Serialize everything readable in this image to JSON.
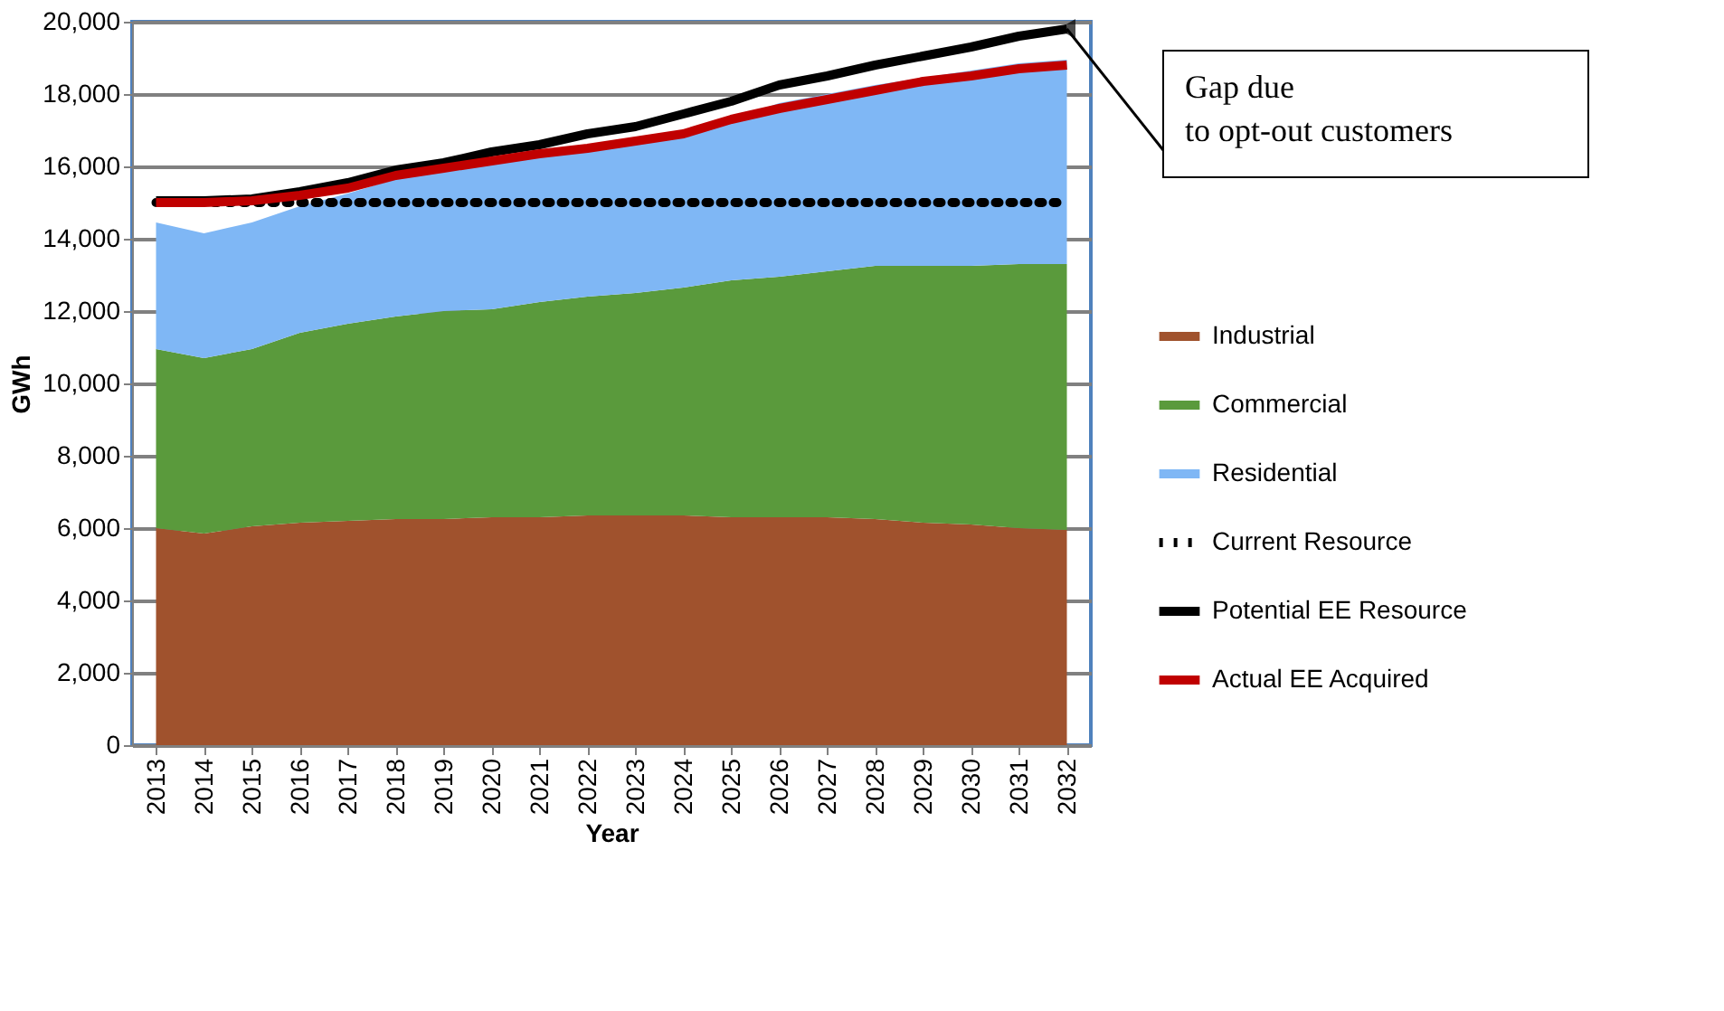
{
  "chart_data": {
    "type": "area",
    "stacked": true,
    "xlabel": "Year",
    "ylabel": "GWh",
    "categories": [
      "2013",
      "2014",
      "2015",
      "2016",
      "2017",
      "2018",
      "2019",
      "2020",
      "2021",
      "2022",
      "2023",
      "2024",
      "2025",
      "2026",
      "2027",
      "2028",
      "2029",
      "2030",
      "2031",
      "2032"
    ],
    "series": [
      {
        "name": "Industrial",
        "color": "#a0522d",
        "values": [
          6000,
          5850,
          6050,
          6150,
          6200,
          6250,
          6250,
          6300,
          6300,
          6350,
          6350,
          6350,
          6300,
          6300,
          6300,
          6250,
          6150,
          6100,
          6000,
          5950
        ]
      },
      {
        "name": "Commercial",
        "color": "#5a9a3c",
        "values": [
          4950,
          4850,
          4900,
          5250,
          5450,
          5600,
          5750,
          5750,
          5950,
          6050,
          6150,
          6300,
          6550,
          6650,
          6800,
          7000,
          7100,
          7150,
          7300,
          7350
        ]
      },
      {
        "name": "Residential",
        "color": "#7fb7f5",
        "values": [
          3500,
          3450,
          3500,
          3500,
          3600,
          3800,
          3900,
          4000,
          4050,
          4100,
          4250,
          4350,
          4450,
          4800,
          4900,
          5000,
          5200,
          5400,
          5550,
          5650
        ]
      },
      {
        "name": "Current Resource",
        "type": "line",
        "line_style": "dotted",
        "color": "#000000",
        "values": [
          15000,
          15000,
          15000,
          15000,
          15000,
          15000,
          15000,
          15000,
          15000,
          15000,
          15000,
          15000,
          15000,
          15000,
          15000,
          15000,
          15000,
          15000,
          15000,
          15000
        ]
      },
      {
        "name": "Potential EE Resource",
        "type": "line",
        "line_style": "solid",
        "color": "#000000",
        "values": [
          15050,
          15050,
          15100,
          15300,
          15550,
          15900,
          16100,
          16400,
          16600,
          16900,
          17100,
          17450,
          17800,
          18250,
          18500,
          18800,
          19050,
          19300,
          19600,
          19800
        ]
      },
      {
        "name": "Actual EE Acquired",
        "type": "line",
        "line_style": "solid",
        "color": "#c00000",
        "values": [
          15000,
          15000,
          15050,
          15200,
          15400,
          15750,
          15950,
          16150,
          16350,
          16500,
          16700,
          16900,
          17300,
          17600,
          17850,
          18100,
          18350,
          18500,
          18700,
          18800
        ]
      }
    ],
    "ylim": [
      0,
      20000
    ],
    "yticks": [
      0,
      {
        "value": 2000,
        "label": "2,000"
      },
      {
        "value": 4000,
        "label": "4,000"
      },
      {
        "value": 6000,
        "label": "6,000"
      },
      {
        "value": 8000,
        "label": "8,000"
      },
      {
        "value": 10000,
        "label": "10,000"
      },
      {
        "value": 12000,
        "label": "12,000"
      },
      {
        "value": 14000,
        "label": "14,000"
      },
      {
        "value": 16000,
        "label": "16,000"
      },
      {
        "value": 18000,
        "label": "18,000"
      },
      {
        "value": 20000,
        "label": "20,000"
      }
    ],
    "grid": "y",
    "legend": "right",
    "marker": "none",
    "annotations": [
      {
        "text": "Gap due to opt-out customers",
        "x": "2032",
        "y": 19800
      }
    ]
  }
}
